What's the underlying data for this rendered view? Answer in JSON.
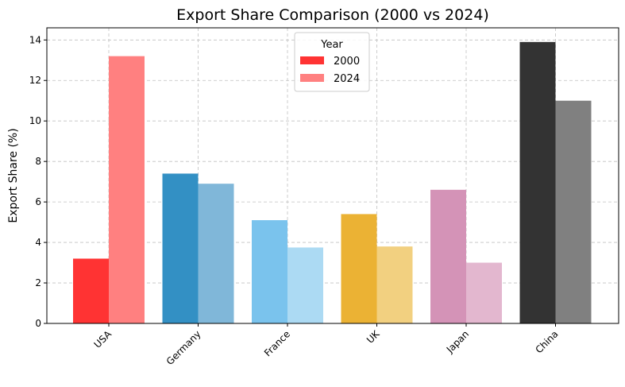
{
  "chart_data": {
    "type": "bar",
    "title": "Export Share Comparison (2000 vs 2024)",
    "xlabel": "",
    "ylabel": "Export Share (%)",
    "ylim": [
      0,
      14.6
    ],
    "yticks": [
      0,
      2,
      4,
      6,
      8,
      10,
      12,
      14
    ],
    "grid": true,
    "legend": {
      "title": "Year",
      "placement": "top-center"
    },
    "categories": [
      "USA",
      "Germany",
      "France",
      "UK",
      "Japan",
      "China"
    ],
    "series": [
      {
        "name": "2000",
        "values": [
          3.2,
          7.4,
          5.1,
          5.4,
          6.6,
          13.9
        ],
        "colors": [
          "#ff3333",
          "#3390c4",
          "#7ac3ed",
          "#ebb234",
          "#d493b7",
          "#333333"
        ],
        "legend_color": "#ff3333"
      },
      {
        "name": "2024",
        "values": [
          13.2,
          6.9,
          3.75,
          3.8,
          3.0,
          11.0
        ],
        "colors": [
          "#ff8080",
          "#80b7d9",
          "#acdaf3",
          "#f2d080",
          "#e3b7cf",
          "#808080"
        ],
        "legend_color": "#ff8080"
      }
    ]
  }
}
